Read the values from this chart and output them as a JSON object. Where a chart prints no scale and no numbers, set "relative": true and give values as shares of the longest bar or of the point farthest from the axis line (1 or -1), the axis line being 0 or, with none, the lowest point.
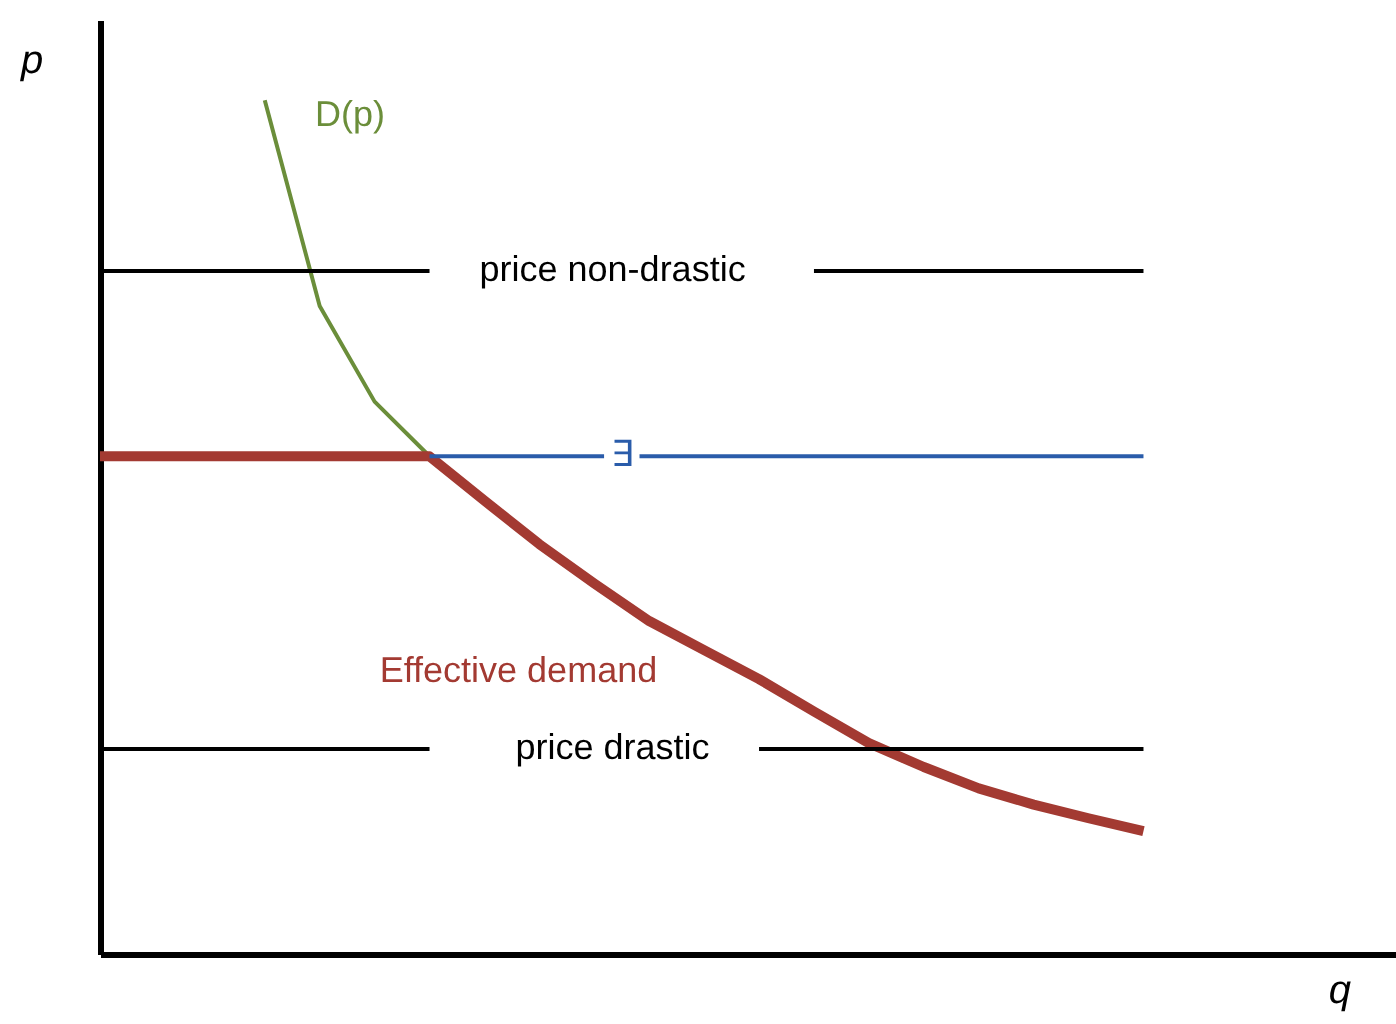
{
  "chart_data": {
    "type": "line",
    "relative": true,
    "xlabel": "q",
    "ylabel": "p",
    "grid": false,
    "categories": [
      null,
      null,
      null,
      null,
      null,
      null,
      null,
      null,
      null,
      null,
      null,
      null,
      null,
      null,
      null,
      null,
      null,
      null,
      null,
      null
    ],
    "series": [
      {
        "color": "#6b8e3a",
        "values": [
          null,
          null,
          null,
          1.0,
          0.759,
          0.647,
          0.583,
          null,
          null,
          null,
          null,
          null,
          null,
          null,
          null,
          null,
          null,
          null,
          null,
          null
        ]
      },
      {
        "color": "#a33a32",
        "values": [
          0.583,
          0.583,
          0.583,
          0.583,
          0.583,
          0.583,
          0.583,
          0.531,
          0.48,
          0.434,
          0.39,
          0.356,
          0.322,
          0.284,
          0.247,
          0.219,
          0.194,
          0.175,
          0.159,
          0.144
        ]
      },
      {
        "color": "#000000",
        "values": [
          0.8,
          0.8,
          0.8,
          0.8,
          0.8,
          0.8,
          0.8,
          null,
          null,
          null,
          null,
          null,
          null,
          0.8,
          0.8,
          0.8,
          0.8,
          0.8,
          0.8,
          0.8
        ]
      },
      {
        "color": "#2a5caa",
        "values": [
          null,
          null,
          null,
          null,
          null,
          null,
          0.583,
          0.583,
          0.583,
          0.583,
          0.583,
          0.583,
          0.583,
          0.583,
          0.583,
          0.583,
          0.583,
          0.583,
          0.583,
          0.583
        ]
      },
      {
        "color": "#000000",
        "values": [
          0.24,
          0.24,
          0.24,
          0.24,
          0.24,
          0.24,
          0.24,
          null,
          null,
          null,
          null,
          null,
          0.24,
          0.24,
          0.24,
          0.24,
          0.24,
          0.24,
          0.24,
          0.24
        ]
      }
    ],
    "annotations": [
      "D(p)",
      "price non-drastic",
      "∃",
      "Effective demand",
      "price drastic"
    ]
  }
}
